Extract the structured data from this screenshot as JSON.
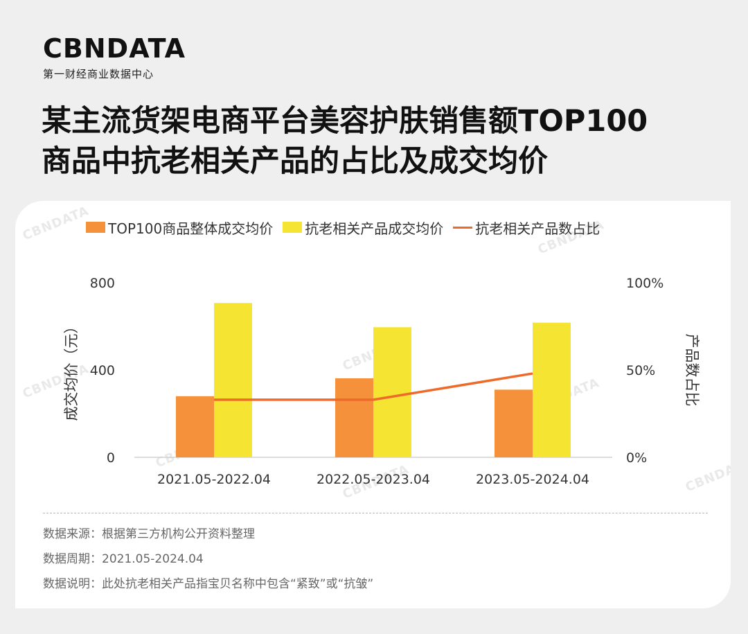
{
  "logo": {
    "main": "CBNDATA",
    "sub": "第一财经商业数据中心"
  },
  "title": {
    "line1": "某主流货架电商平台美容护肤销售额TOP100",
    "line2": "商品中抗老相关产品的占比及成交均价"
  },
  "watermark": "CBNDATA",
  "chart_data": {
    "type": "bar",
    "categories": [
      "2021.05-2022.04",
      "2022.05-2023.04",
      "2023.05-2024.04"
    ],
    "series": [
      {
        "name": "TOP100商品整体成交均价",
        "type": "bar",
        "axis": "left",
        "color": "#f5913a",
        "values": [
          280,
          362,
          310
        ]
      },
      {
        "name": "抗老相关产品成交均价",
        "type": "bar",
        "axis": "left",
        "color": "#f5e532",
        "values": [
          707,
          596,
          617
        ]
      },
      {
        "name": "抗老相关产品数占比",
        "type": "line",
        "axis": "right",
        "color": "#ef6a2a",
        "values": [
          33,
          33,
          48
        ]
      }
    ],
    "ylabel": "成交均价（元）",
    "y2label": "产品数占比",
    "ylim": [
      0,
      800
    ],
    "y2lim": [
      0,
      100
    ],
    "yticks": [
      "0",
      "400",
      "800"
    ],
    "y2ticks": [
      "0%",
      "50%",
      "100%"
    ],
    "legend": "top",
    "grid": false
  },
  "notes": {
    "source": "数据来源：根据第三方机构公开资料整理",
    "period": "数据周期：2021.05-2024.04",
    "desc": "数据说明：此处抗老相关产品指宝贝名称中包含“紧致”或“抗皱”"
  }
}
